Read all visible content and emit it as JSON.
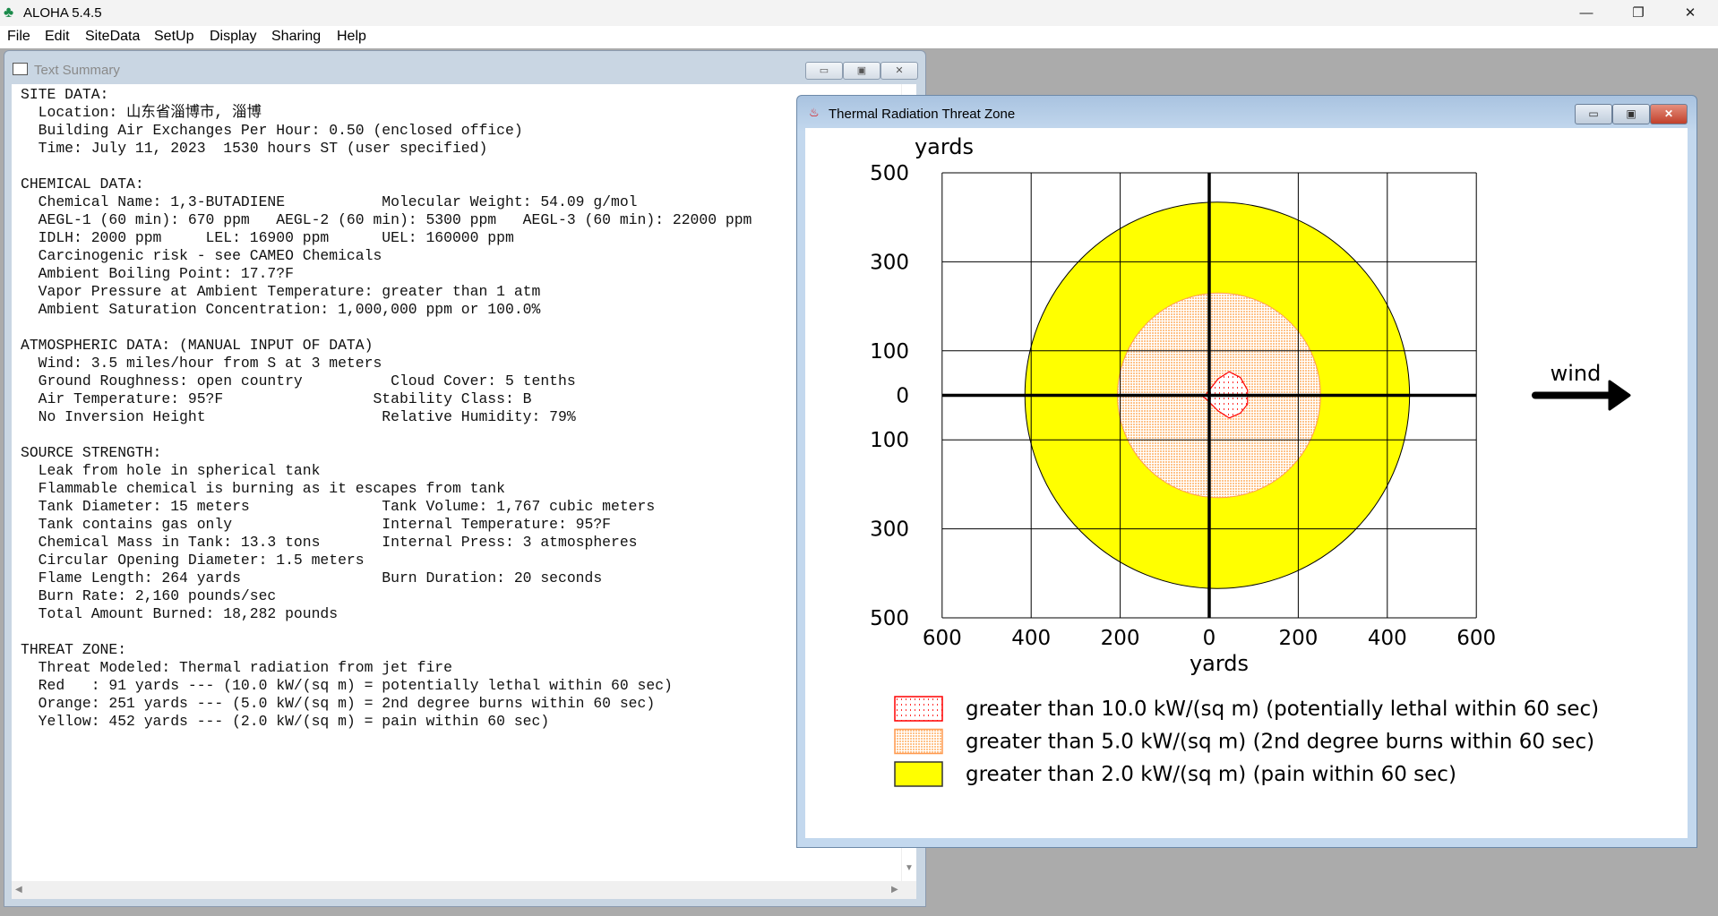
{
  "app": {
    "title": "ALOHA 5.4.5",
    "icon": "palm-tree-icon",
    "minimize": "—",
    "restore": "❐",
    "close": "✕"
  },
  "menu": [
    "File",
    "Edit",
    "SiteData",
    "SetUp",
    "Display",
    "Sharing",
    "Help"
  ],
  "text_summary": {
    "title": "Text Summary",
    "lines": [
      "SITE DATA:",
      "  Location: 山东省淄博市, 淄博",
      "  Building Air Exchanges Per Hour: 0.50 (enclosed office)",
      "  Time: July 11, 2023  1530 hours ST (user specified)",
      "",
      "CHEMICAL DATA:",
      "  Chemical Name: 1,3-BUTADIENE           Molecular Weight: 54.09 g/mol",
      "  AEGL-1 (60 min): 670 ppm   AEGL-2 (60 min): 5300 ppm   AEGL-3 (60 min): 22000 ppm",
      "  IDLH: 2000 ppm     LEL: 16900 ppm      UEL: 160000 ppm",
      "  Carcinogenic risk - see CAMEO Chemicals",
      "  Ambient Boiling Point: 17.7?F",
      "  Vapor Pressure at Ambient Temperature: greater than 1 atm",
      "  Ambient Saturation Concentration: 1,000,000 ppm or 100.0%",
      "",
      "ATMOSPHERIC DATA: (MANUAL INPUT OF DATA)",
      "  Wind: 3.5 miles/hour from S at 3 meters",
      "  Ground Roughness: open country          Cloud Cover: 5 tenths",
      "  Air Temperature: 95?F                 Stability Class: B",
      "  No Inversion Height                    Relative Humidity: 79%",
      "",
      "SOURCE STRENGTH:",
      "  Leak from hole in spherical tank",
      "  Flammable chemical is burning as it escapes from tank",
      "  Tank Diameter: 15 meters               Tank Volume: 1,767 cubic meters",
      "  Tank contains gas only                 Internal Temperature: 95?F",
      "  Chemical Mass in Tank: 13.3 tons       Internal Press: 3 atmospheres",
      "  Circular Opening Diameter: 1.5 meters",
      "  Flame Length: 264 yards                Burn Duration: 20 seconds",
      "  Burn Rate: 2,160 pounds/sec",
      "  Total Amount Burned: 18,282 pounds",
      "",
      "THREAT ZONE:",
      "  Threat Modeled: Thermal radiation from jet fire",
      "  Red   : 91 yards --- (10.0 kW/(sq m) = potentially lethal within 60 sec)",
      "  Orange: 251 yards --- (5.0 kW/(sq m) = 2nd degree burns within 60 sec)",
      "  Yellow: 452 yards --- (2.0 kW/(sq m) = pain within 60 sec)"
    ]
  },
  "threat_window": {
    "title": "Thermal Radiation Threat Zone",
    "wind_label": "wind"
  },
  "chart_data": {
    "type": "area",
    "ylabel": "yards",
    "xlabel": "yards",
    "xlim": [
      -600,
      600
    ],
    "ylim": [
      -500,
      500
    ],
    "x_ticks": [
      -600,
      -400,
      -200,
      0,
      200,
      400,
      600
    ],
    "x_tick_labels": [
      "600",
      "400",
      "200",
      "0",
      "200",
      "400",
      "600"
    ],
    "y_ticks": [
      500,
      300,
      100,
      0,
      -100,
      -300,
      -500
    ],
    "y_tick_labels": [
      "500",
      "300",
      "100",
      "0",
      "100",
      "300",
      "500"
    ],
    "grid": true,
    "wind_direction": "east",
    "zones": [
      {
        "name": "yellow",
        "color": "#ffff00",
        "center": [
          18,
          0
        ],
        "rx": 432,
        "ry": 434,
        "legend": "greater than 2.0 kW/(sq m) (pain within 60 sec)"
      },
      {
        "name": "orange",
        "color": "#ffa040",
        "center": [
          22,
          0
        ],
        "rx": 228,
        "ry": 230,
        "legend": "greater than 5.0 kW/(sq m) (2nd degree burns within 60 sec)"
      },
      {
        "name": "red",
        "color": "#ff0000",
        "polygon": [
          [
            -5,
            5
          ],
          [
            20,
            37
          ],
          [
            45,
            53
          ],
          [
            70,
            40
          ],
          [
            86,
            12
          ],
          [
            86,
            -20
          ],
          [
            70,
            -40
          ],
          [
            45,
            -51
          ],
          [
            20,
            -35
          ],
          [
            -5,
            -10
          ],
          [
            -14,
            -3
          ]
        ],
        "legend": "greater than 10.0 kW/(sq m) (potentially lethal within 60 sec)"
      }
    ],
    "legend_order": [
      "red",
      "orange",
      "yellow"
    ]
  }
}
